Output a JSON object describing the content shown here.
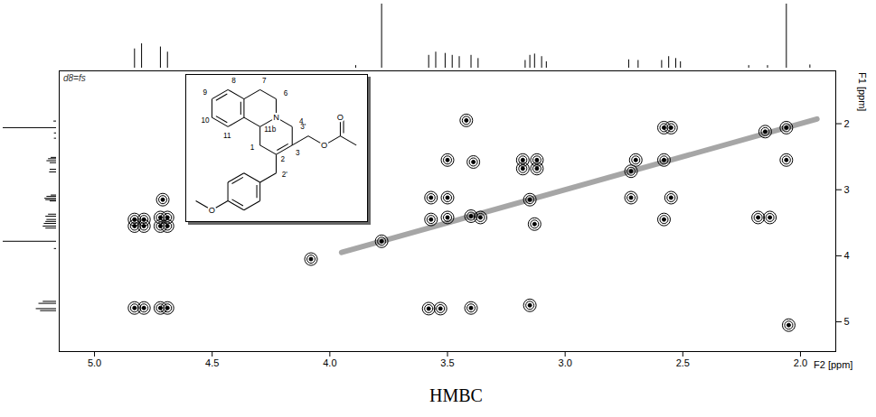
{
  "chart_data": {
    "type": "contour",
    "title": "HMBC",
    "annotations": [
      "d8=fs"
    ],
    "x_label": "F2 [ppm]",
    "y_label": "F1 [ppm]",
    "color": "#000000",
    "xlim": [
      5.15,
      1.85
    ],
    "xticks": [
      {
        "value": 5,
        "label": "5.0"
      },
      {
        "value": 4.5,
        "label": "4.5"
      },
      {
        "value": 4,
        "label": "4.0"
      },
      {
        "value": 3.5,
        "label": "3.5"
      },
      {
        "value": 3,
        "label": "3.0"
      },
      {
        "value": 2.5,
        "label": "2.5"
      },
      {
        "value": 2,
        "label": "2.0"
      }
    ],
    "ylim": [
      1.2,
      5.45
    ],
    "yticks": [
      2,
      3,
      4,
      5
    ],
    "peaks": {
      "x": [
        4.83,
        4.79,
        4.72,
        4.69,
        4.83,
        4.79,
        4.83,
        4.79,
        4.72,
        4.69,
        4.72,
        4.69,
        4.71,
        3.58,
        3.53,
        3.4,
        3.15,
        4.08,
        3.42,
        3.5,
        3.39,
        3.57,
        3.5,
        3.57,
        3.5,
        3.4,
        3.36,
        3.18,
        3.12,
        3.18,
        3.12,
        3.13,
        2.72,
        2.7,
        2.72,
        2.58,
        2.55,
        2.58,
        2.55,
        2.58,
        2.06,
        2.06,
        2.15,
        2.18,
        2.13,
        3.78,
        3.15,
        2.05
      ],
      "y": [
        4.79,
        4.79,
        4.79,
        4.79,
        3.55,
        3.55,
        3.45,
        3.45,
        3.55,
        3.55,
        3.42,
        3.42,
        3.15,
        4.8,
        4.8,
        4.79,
        4.75,
        4.05,
        1.95,
        2.55,
        2.58,
        3.12,
        3.12,
        3.45,
        3.42,
        3.4,
        3.42,
        2.55,
        2.55,
        2.68,
        2.68,
        3.52,
        2.72,
        2.55,
        3.12,
        2.06,
        2.06,
        2.55,
        3.12,
        3.45,
        2.55,
        2.06,
        2.12,
        3.42,
        3.42,
        3.78,
        3.15,
        5.05
      ]
    },
    "diagonal": {
      "x": [
        3.95,
        1.93
      ],
      "y": [
        3.95,
        1.93
      ]
    },
    "projection": {
      "ppm": [
        4.83,
        4.8,
        4.72,
        4.69,
        3.89,
        3.78,
        3.58,
        3.55,
        3.51,
        3.48,
        3.45,
        3.4,
        3.37,
        3.17,
        3.15,
        3.13,
        3.1,
        3.08,
        2.73,
        2.69,
        2.59,
        2.56,
        2.53,
        2.51,
        2.22,
        2.14,
        2.06,
        1.96
      ],
      "intensity": [
        0.3,
        0.38,
        0.33,
        0.25,
        0.04,
        1.0,
        0.2,
        0.25,
        0.23,
        0.2,
        0.18,
        0.2,
        0.15,
        0.12,
        0.2,
        0.22,
        0.18,
        0.1,
        0.13,
        0.12,
        0.12,
        0.18,
        0.15,
        0.1,
        0.04,
        0.04,
        1.0,
        0.05
      ]
    },
    "structure": {
      "atom_labels": [
        "9",
        "8",
        "7",
        "6",
        "N",
        "4",
        "10",
        "11",
        "11b",
        "1",
        "2",
        "3",
        "3'",
        "O",
        "O",
        "2'",
        "O"
      ]
    }
  }
}
